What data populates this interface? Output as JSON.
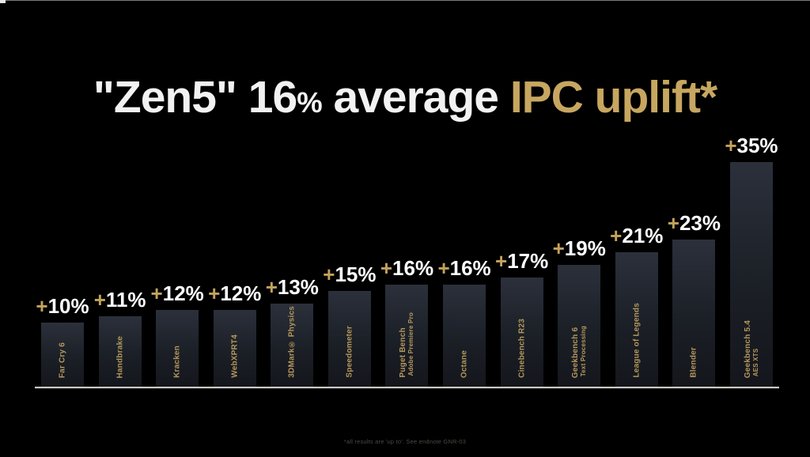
{
  "title": {
    "prefix": "\"Zen5\" 16",
    "percent_sign": "%",
    "middle": " average ",
    "accent": "IPC uplift*"
  },
  "footnote": "*all results are 'up to'. See endnote GNR-03",
  "colors": {
    "background": "#000000",
    "title_white": "#f2f2f2",
    "accent_gold": "#c7a660",
    "label_gold": "#b4975c",
    "plus_gold": "#c3a25c",
    "value_white": "#ffffff",
    "bar_top": "#2b303b",
    "bar_bottom": "#14161c",
    "baseline": "#ccc9c2",
    "footnote_gray": "#4a4a44"
  },
  "chart_data": {
    "type": "bar",
    "title": "\"Zen5\" 16% average IPC uplift*",
    "subtitle": "",
    "unit": "%",
    "value_prefix": "+",
    "xlabel": "",
    "ylabel": "",
    "ylim": [
      0,
      35
    ],
    "grid": false,
    "legend": "none",
    "average_uplift": 16,
    "bars": [
      {
        "label": "Far Cry 6",
        "sublabel": "",
        "value": 10,
        "display": "+10%"
      },
      {
        "label": "Handbrake",
        "sublabel": "",
        "value": 11,
        "display": "+11%"
      },
      {
        "label": "Kracken",
        "sublabel": "",
        "value": 12,
        "display": "+12%"
      },
      {
        "label": "WebXPRT4",
        "sublabel": "",
        "value": 12,
        "display": "+12%"
      },
      {
        "label": "3DMark® Physics",
        "sublabel": "",
        "value": 13,
        "display": "+13%"
      },
      {
        "label": "Speedometer",
        "sublabel": "",
        "value": 15,
        "display": "+15%"
      },
      {
        "label": "Puget Bench",
        "sublabel": "Adobe Premiere Pro",
        "value": 16,
        "display": "+16%"
      },
      {
        "label": "Octane",
        "sublabel": "",
        "value": 16,
        "display": "+16%"
      },
      {
        "label": "Cinebench R23",
        "sublabel": "",
        "value": 17,
        "display": "+17%"
      },
      {
        "label": "Geekbench 6",
        "sublabel": "Text Processing",
        "value": 19,
        "display": "+19%"
      },
      {
        "label": "League of Legends",
        "sublabel": "",
        "value": 21,
        "display": "+21%"
      },
      {
        "label": "Blender",
        "sublabel": "",
        "value": 23,
        "display": "+23%"
      },
      {
        "label": "Geekbench 5.4",
        "sublabel": "AES XTS",
        "value": 35,
        "display": "+35%"
      }
    ]
  }
}
